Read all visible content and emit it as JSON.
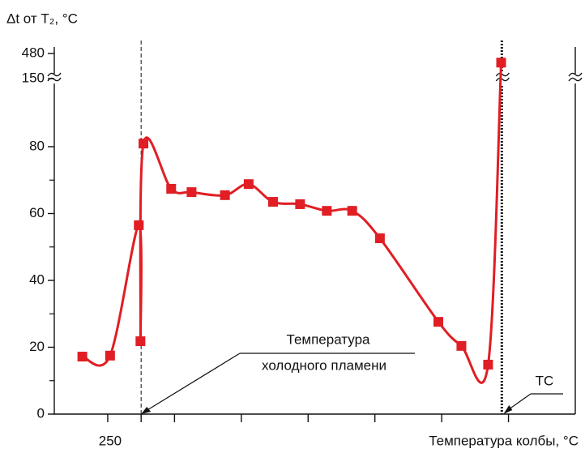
{
  "chart_data": {
    "type": "line",
    "title": "Δt от T₂, °C",
    "x_label": "Температура колбы, °C",
    "x": [
      242.4,
      250.7,
      259.3,
      259.8,
      260.7,
      269.0,
      275.1,
      285.1,
      292.2,
      299.5,
      307.6,
      315.6,
      323.2,
      331.5,
      349.0,
      355.9,
      363.9,
      367.8
    ],
    "series": [
      {
        "color": "#e01e24",
        "values": [
          17.2,
          17.5,
          56.5,
          21.8,
          83.2,
          67.4,
          66.4,
          65.5,
          68.8,
          63.5,
          62.8,
          60.8,
          60.8,
          52.6,
          27.6,
          20.4,
          14.8,
          360
        ]
      }
    ],
    "xlim": [
      234,
      390
    ],
    "xticks": [
      250
    ],
    "xminorticks": [
      260,
      270,
      290,
      310,
      330,
      350,
      370
    ],
    "ylim": [
      0,
      480
    ],
    "yticks": [
      0,
      20,
      40,
      60,
      80,
      150,
      480
    ],
    "yminorticks": [
      10,
      30,
      50,
      70
    ],
    "y_break": [
      80,
      150
    ],
    "vlines": [
      {
        "x": 260,
        "style": "dashed"
      },
      {
        "x": 368,
        "style": "dotted"
      }
    ],
    "annotations": [
      {
        "text": [
          "Температура",
          "холодного пламени"
        ],
        "x": 260,
        "y": 0
      },
      {
        "text": [
          "ТС"
        ],
        "x": 368,
        "y": 0
      }
    ]
  }
}
